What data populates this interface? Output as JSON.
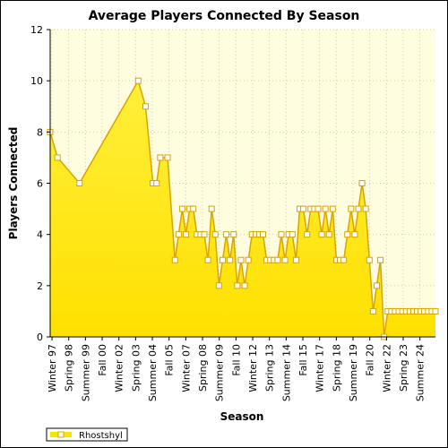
{
  "chart_data": {
    "type": "area",
    "title": "Average Players Connected By Season",
    "xlabel": "Season",
    "ylabel": "Players Connected",
    "ylim": [
      0,
      12
    ],
    "yticks": [
      0,
      2,
      4,
      6,
      8,
      10,
      12
    ],
    "grid": true,
    "legend_position": "bottom-left",
    "colors": {
      "fill_top": "#ffef3a",
      "fill_bottom": "#ffe000",
      "line": "#d9a300",
      "plot_bg": "#fffde0",
      "grid": "#cfcfa0"
    },
    "x_tick_labels": [
      "Winter 97",
      "Spring 98",
      "Summer 99",
      "Fall 00",
      "Winter 02",
      "Spring 03",
      "Summer 04",
      "Fall 05",
      "Winter 07",
      "Spring 08",
      "Summer 09",
      "Fall 10",
      "Winter 12",
      "Spring 13",
      "Summer 14",
      "Fall 15",
      "Winter 17",
      "Spring 18",
      "Summer 19",
      "Fall 20",
      "Winter 22",
      "Spring 23",
      "Summer 24"
    ],
    "series": [
      {
        "name": "Rhostshyl",
        "values": [
          [
            0,
            8
          ],
          [
            2,
            7
          ],
          [
            8,
            6
          ],
          [
            24,
            10
          ],
          [
            26,
            9
          ],
          [
            28,
            6
          ],
          [
            29,
            6
          ],
          [
            30,
            7
          ],
          [
            32,
            7
          ],
          [
            34,
            3
          ],
          [
            35,
            4
          ],
          [
            36,
            5
          ],
          [
            37,
            4
          ],
          [
            38,
            5
          ],
          [
            39,
            5
          ],
          [
            40,
            4
          ],
          [
            41,
            4
          ],
          [
            42,
            4
          ],
          [
            43,
            3
          ],
          [
            44,
            5
          ],
          [
            45,
            4
          ],
          [
            46,
            2
          ],
          [
            47,
            3
          ],
          [
            48,
            4
          ],
          [
            49,
            3
          ],
          [
            50,
            4
          ],
          [
            51,
            2
          ],
          [
            52,
            3
          ],
          [
            53,
            2
          ],
          [
            54,
            3
          ],
          [
            55,
            4
          ],
          [
            56,
            4
          ],
          [
            57,
            4
          ],
          [
            58,
            4
          ],
          [
            59,
            3
          ],
          [
            60,
            3
          ],
          [
            61,
            3
          ],
          [
            62,
            3
          ],
          [
            63,
            4
          ],
          [
            64,
            3
          ],
          [
            65,
            4
          ],
          [
            66,
            4
          ],
          [
            67,
            3
          ],
          [
            68,
            5
          ],
          [
            69,
            5
          ],
          [
            70,
            4
          ],
          [
            71,
            5
          ],
          [
            72,
            5
          ],
          [
            73,
            5
          ],
          [
            74,
            4
          ],
          [
            75,
            5
          ],
          [
            76,
            4
          ],
          [
            77,
            5
          ],
          [
            78,
            3
          ],
          [
            79,
            3
          ],
          [
            80,
            3
          ],
          [
            81,
            4
          ],
          [
            82,
            5
          ],
          [
            83,
            4
          ],
          [
            84,
            5
          ],
          [
            85,
            6
          ],
          [
            86,
            5
          ],
          [
            87,
            3
          ],
          [
            88,
            1
          ],
          [
            89,
            2
          ],
          [
            90,
            3
          ],
          [
            91,
            0
          ],
          [
            92,
            1
          ],
          [
            93,
            1
          ],
          [
            94,
            1
          ],
          [
            95,
            1
          ],
          [
            96,
            1
          ],
          [
            97,
            1
          ],
          [
            98,
            1
          ],
          [
            99,
            1
          ],
          [
            100,
            1
          ],
          [
            101,
            1
          ],
          [
            102,
            1
          ],
          [
            103,
            1
          ],
          [
            104,
            1
          ],
          [
            105,
            1
          ]
        ]
      }
    ]
  }
}
